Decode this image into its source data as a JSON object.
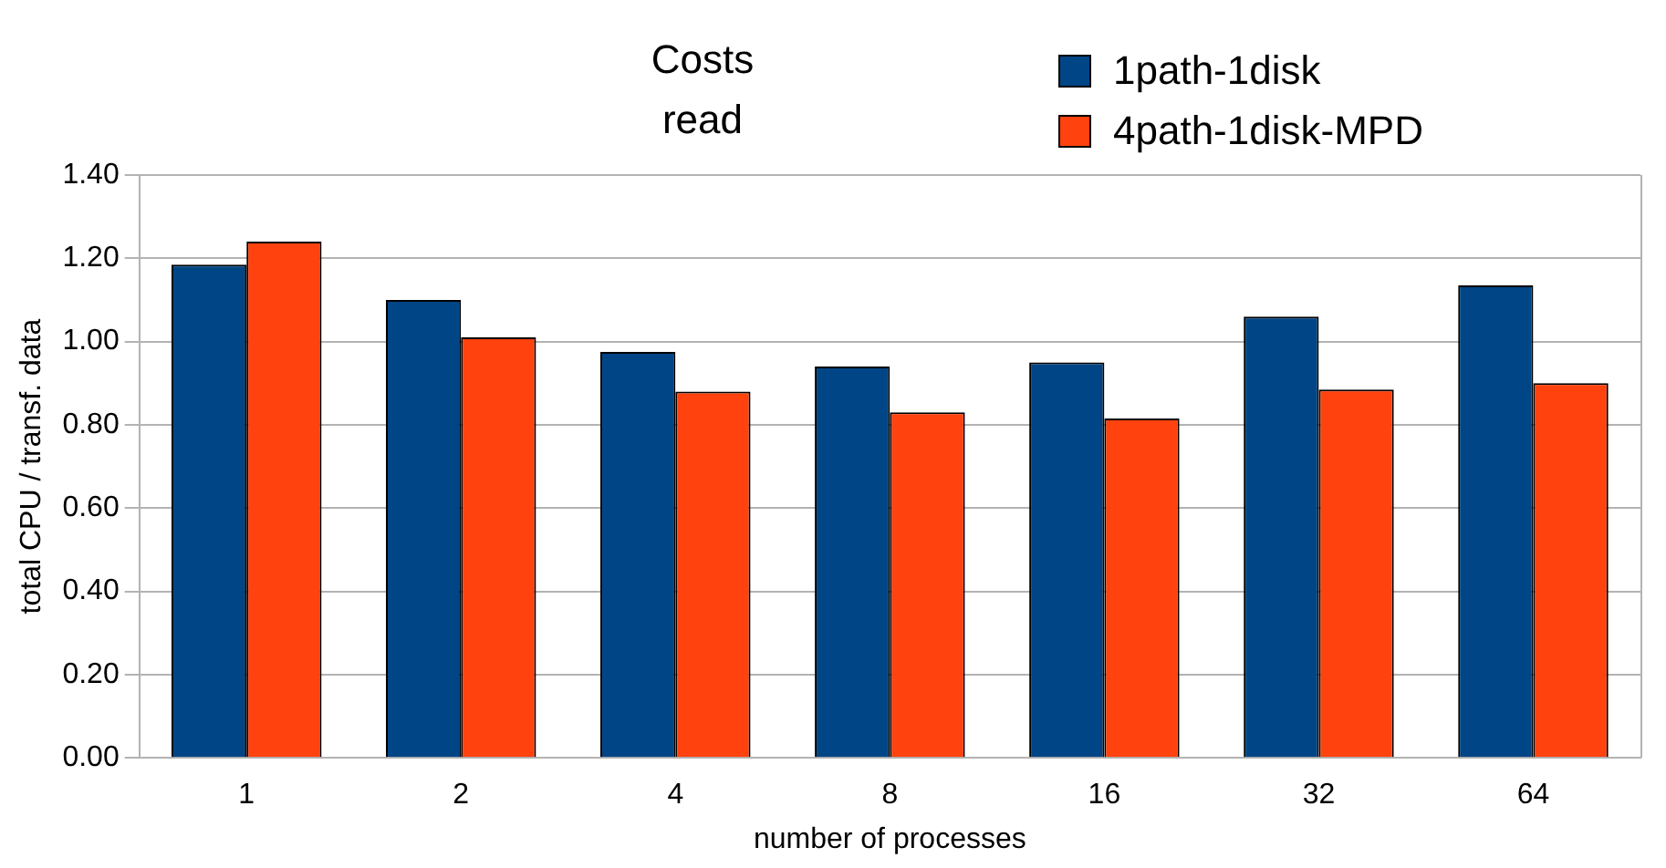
{
  "chart_data": {
    "type": "bar",
    "title": "Costs\nread",
    "xlabel": "number of processes",
    "ylabel": "total CPU / transf. data",
    "categories": [
      "1",
      "2",
      "4",
      "8",
      "16",
      "32",
      "64"
    ],
    "series": [
      {
        "name": "1path-1disk",
        "color": "#004586",
        "values": [
          1.185,
          1.1,
          0.975,
          0.94,
          0.95,
          1.06,
          1.135
        ]
      },
      {
        "name": "4path-1disk-MPD",
        "color": "#ff420e",
        "values": [
          1.24,
          1.01,
          0.88,
          0.83,
          0.815,
          0.885,
          0.9
        ]
      }
    ],
    "ylim": [
      0,
      1.4
    ],
    "yticks": [
      {
        "value": 0,
        "label": "0.00"
      },
      {
        "value": 0.2,
        "label": "0.20"
      },
      {
        "value": 0.4,
        "label": "0.40"
      },
      {
        "value": 0.6,
        "label": "0.60"
      },
      {
        "value": 0.8,
        "label": "0.80"
      },
      {
        "value": 1.0,
        "label": "1.00"
      },
      {
        "value": 1.2,
        "label": "1.20"
      },
      {
        "value": 1.4,
        "label": "1.40"
      }
    ],
    "grid": "y",
    "legend": "top right"
  }
}
